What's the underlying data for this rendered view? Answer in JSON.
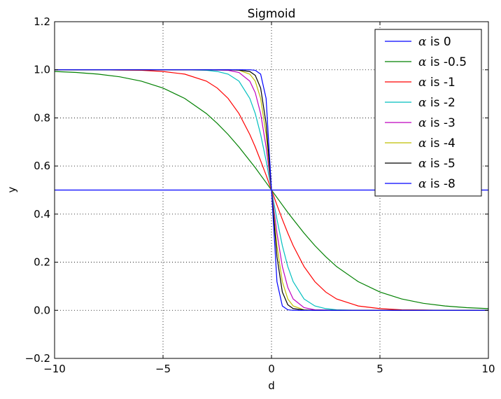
{
  "chart_data": {
    "type": "line",
    "title": "Sigmoid",
    "xlabel": "d",
    "ylabel": "y",
    "xlim": [
      -10,
      10
    ],
    "ylim": [
      -0.2,
      1.2
    ],
    "xticks": [
      -10,
      -5,
      0,
      5,
      10
    ],
    "xtick_labels": [
      "−10",
      "−5",
      "0",
      "5",
      "10"
    ],
    "yticks": [
      -0.2,
      0.0,
      0.2,
      0.4,
      0.6,
      0.8,
      1.0,
      1.2
    ],
    "ytick_labels": [
      "−0.2",
      "0.0",
      "0.2",
      "0.4",
      "0.6",
      "0.8",
      "1.0",
      "1.2"
    ],
    "grid": true,
    "legend_position": "top-right",
    "function": "y = 1 / (1 + exp(-alpha * d))",
    "x": [
      -10,
      -9,
      -8,
      -7,
      -6,
      -5,
      -4,
      -3,
      -2.5,
      -2,
      -1.5,
      -1,
      -0.75,
      -0.5,
      -0.25,
      0,
      0.25,
      0.5,
      0.75,
      1,
      1.5,
      2,
      2.5,
      3,
      4,
      5,
      6,
      7,
      8,
      9,
      10
    ],
    "series": [
      {
        "name": "is 0",
        "alpha": 0,
        "color": "#0000ff",
        "values": [
          0.5,
          0.5,
          0.5,
          0.5,
          0.5,
          0.5,
          0.5,
          0.5,
          0.5,
          0.5,
          0.5,
          0.5,
          0.5,
          0.5,
          0.5,
          0.5,
          0.5,
          0.5,
          0.5,
          0.5,
          0.5,
          0.5,
          0.5,
          0.5,
          0.5,
          0.5,
          0.5,
          0.5,
          0.5,
          0.5,
          0.5
        ]
      },
      {
        "name": "is -0.5",
        "alpha": -0.5,
        "color": "#008000",
        "values": [
          0.993,
          0.989,
          0.982,
          0.971,
          0.953,
          0.924,
          0.881,
          0.818,
          0.777,
          0.731,
          0.679,
          0.622,
          0.593,
          0.562,
          0.531,
          0.5,
          0.469,
          0.438,
          0.407,
          0.378,
          0.321,
          0.269,
          0.223,
          0.182,
          0.119,
          0.076,
          0.047,
          0.029,
          0.018,
          0.011,
          0.007
        ]
      },
      {
        "name": "is -1",
        "alpha": -1,
        "color": "#ff0000",
        "values": [
          1.0,
          1.0,
          1.0,
          0.999,
          0.998,
          0.993,
          0.982,
          0.953,
          0.924,
          0.881,
          0.818,
          0.731,
          0.679,
          0.622,
          0.562,
          0.5,
          0.438,
          0.378,
          0.321,
          0.269,
          0.182,
          0.119,
          0.076,
          0.047,
          0.018,
          0.007,
          0.002,
          0.001,
          0.0,
          0.0,
          0.0
        ]
      },
      {
        "name": "is -2",
        "alpha": -2,
        "color": "#00bfbf",
        "values": [
          1.0,
          1.0,
          1.0,
          1.0,
          1.0,
          1.0,
          1.0,
          0.998,
          0.993,
          0.982,
          0.953,
          0.881,
          0.818,
          0.731,
          0.622,
          0.5,
          0.378,
          0.269,
          0.182,
          0.119,
          0.047,
          0.018,
          0.007,
          0.002,
          0.0,
          0.0,
          0.0,
          0.0,
          0.0,
          0.0,
          0.0
        ]
      },
      {
        "name": "is -3",
        "alpha": -3,
        "color": "#bf00bf",
        "values": [
          1.0,
          1.0,
          1.0,
          1.0,
          1.0,
          1.0,
          1.0,
          1.0,
          0.999,
          0.998,
          0.989,
          0.953,
          0.905,
          0.818,
          0.679,
          0.5,
          0.321,
          0.182,
          0.095,
          0.047,
          0.011,
          0.002,
          0.001,
          0.0,
          0.0,
          0.0,
          0.0,
          0.0,
          0.0,
          0.0,
          0.0
        ]
      },
      {
        "name": "is -4",
        "alpha": -4,
        "color": "#bfbf00",
        "values": [
          1.0,
          1.0,
          1.0,
          1.0,
          1.0,
          1.0,
          1.0,
          1.0,
          1.0,
          1.0,
          0.998,
          0.982,
          0.953,
          0.881,
          0.731,
          0.5,
          0.269,
          0.119,
          0.047,
          0.018,
          0.002,
          0.0,
          0.0,
          0.0,
          0.0,
          0.0,
          0.0,
          0.0,
          0.0,
          0.0,
          0.0
        ]
      },
      {
        "name": "is -5",
        "alpha": -5,
        "color": "#000000",
        "values": [
          1.0,
          1.0,
          1.0,
          1.0,
          1.0,
          1.0,
          1.0,
          1.0,
          1.0,
          1.0,
          0.999,
          0.993,
          0.977,
          0.924,
          0.777,
          0.5,
          0.223,
          0.076,
          0.023,
          0.007,
          0.001,
          0.0,
          0.0,
          0.0,
          0.0,
          0.0,
          0.0,
          0.0,
          0.0,
          0.0,
          0.0
        ]
      },
      {
        "name": "is -8",
        "alpha": -8,
        "color": "#0000ff",
        "values": [
          1.0,
          1.0,
          1.0,
          1.0,
          1.0,
          1.0,
          1.0,
          1.0,
          1.0,
          1.0,
          1.0,
          1.0,
          0.998,
          0.982,
          0.881,
          0.5,
          0.119,
          0.018,
          0.002,
          0.0,
          0.0,
          0.0,
          0.0,
          0.0,
          0.0,
          0.0,
          0.0,
          0.0,
          0.0,
          0.0,
          0.0
        ]
      }
    ]
  }
}
